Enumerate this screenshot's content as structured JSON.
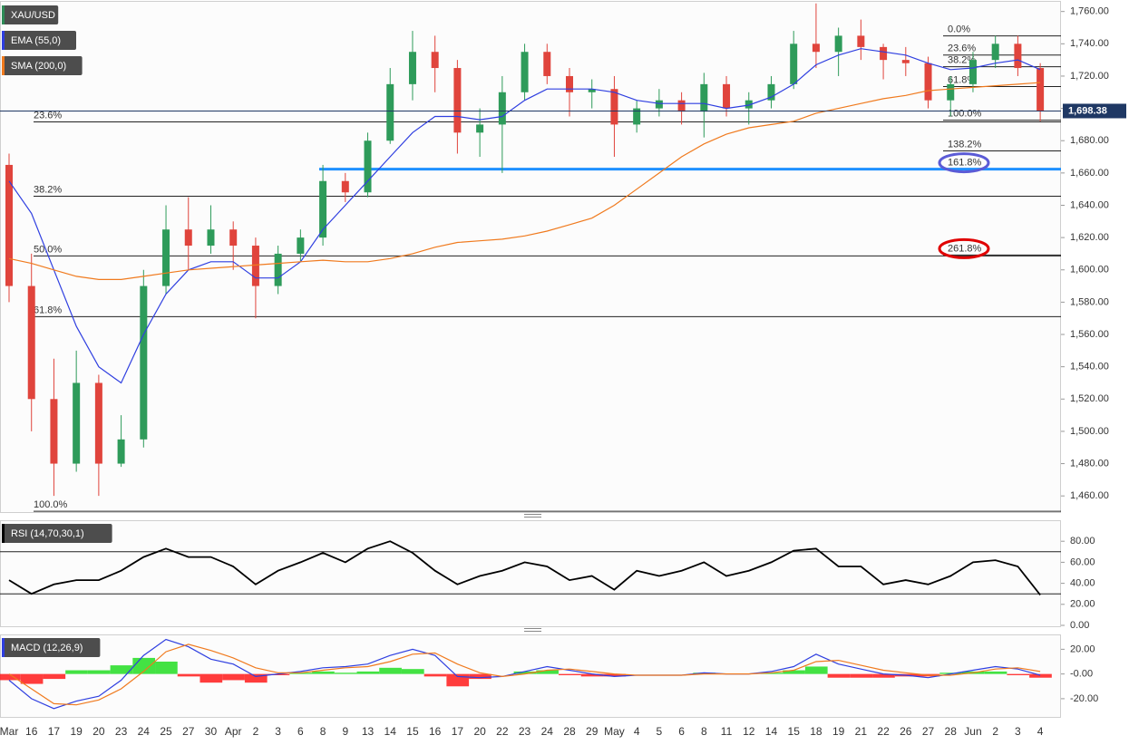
{
  "chart_data": [
    {
      "type": "candlestick",
      "ylim": [
        1450,
        1766
      ],
      "yticks": [
        {
          "value": 1460,
          "label": "1,460.00"
        },
        {
          "value": 1480,
          "label": "1,480.00"
        },
        {
          "value": 1500,
          "label": "1,500.00"
        },
        {
          "value": 1520,
          "label": "1,520.00"
        },
        {
          "value": 1540,
          "label": "1,540.00"
        },
        {
          "value": 1560,
          "label": "1,560.00"
        },
        {
          "value": 1580,
          "label": "1,580.00"
        },
        {
          "value": 1600,
          "label": "1,600.00"
        },
        {
          "value": 1620,
          "label": "1,620.00"
        },
        {
          "value": 1640,
          "label": "1,640.00"
        },
        {
          "value": 1660,
          "label": "1,660.00"
        },
        {
          "value": 1680,
          "label": "1,680.00"
        },
        {
          "value": 1700,
          "label": "1,700.00"
        },
        {
          "value": 1720,
          "label": "1,720.00"
        },
        {
          "value": 1740,
          "label": "1,740.00"
        },
        {
          "value": 1760,
          "label": "1,760.00"
        }
      ],
      "up_color": "#2e9b5a",
      "down_color": "#e0443c",
      "last_price": {
        "value": 1698.38,
        "label": "1,698.38"
      },
      "last_price_color": "#1f3864",
      "series": [
        {
          "name": "XAU/USD",
          "color": "#2e8b57",
          "open": [
            1665,
            1590,
            1520,
            1480,
            1530,
            1480,
            1495,
            1590,
            1625,
            1615,
            1625,
            1615,
            1590,
            1610,
            1620,
            1655,
            1648,
            1680,
            1715,
            1735,
            1725,
            1685,
            1690,
            1710,
            1735,
            1720,
            1710,
            1712,
            1690,
            1700,
            1705,
            1698,
            1715,
            1700,
            1705,
            1715,
            1740,
            1735,
            1745,
            1738,
            1730,
            1728,
            1705,
            1715,
            1730,
            1740,
            1725
          ],
          "high": [
            1672,
            1610,
            1545,
            1550,
            1535,
            1510,
            1600,
            1640,
            1645,
            1640,
            1630,
            1620,
            1615,
            1625,
            1665,
            1660,
            1685,
            1725,
            1748,
            1745,
            1730,
            1700,
            1720,
            1740,
            1740,
            1725,
            1718,
            1720,
            1705,
            1712,
            1710,
            1722,
            1720,
            1710,
            1720,
            1748,
            1765,
            1750,
            1755,
            1740,
            1738,
            1732,
            1720,
            1735,
            1745,
            1745,
            1728
          ],
          "low": [
            1580,
            1500,
            1460,
            1475,
            1460,
            1478,
            1490,
            1585,
            1600,
            1610,
            1600,
            1570,
            1585,
            1605,
            1615,
            1642,
            1645,
            1678,
            1705,
            1710,
            1672,
            1670,
            1660,
            1705,
            1715,
            1695,
            1700,
            1670,
            1685,
            1695,
            1690,
            1682,
            1695,
            1690,
            1700,
            1712,
            1725,
            1720,
            1730,
            1718,
            1720,
            1700,
            1695,
            1710,
            1725,
            1720,
            1692
          ],
          "close": [
            1590,
            1520,
            1480,
            1530,
            1480,
            1495,
            1590,
            1625,
            1615,
            1625,
            1615,
            1590,
            1610,
            1620,
            1655,
            1648,
            1680,
            1715,
            1735,
            1725,
            1685,
            1690,
            1710,
            1735,
            1720,
            1710,
            1712,
            1690,
            1700,
            1705,
            1698,
            1715,
            1700,
            1705,
            1715,
            1740,
            1735,
            1745,
            1738,
            1730,
            1728,
            1705,
            1715,
            1730,
            1740,
            1725,
            1698.38
          ]
        },
        {
          "name": "EMA (55,0)",
          "color": "#2f3fe0",
          "values": [
            1655,
            1635,
            1600,
            1565,
            1540,
            1530,
            1560,
            1585,
            1600,
            1605,
            1605,
            1595,
            1595,
            1605,
            1625,
            1640,
            1655,
            1670,
            1685,
            1695,
            1695,
            1693,
            1695,
            1705,
            1712,
            1712,
            1712,
            1710,
            1705,
            1703,
            1703,
            1703,
            1700,
            1702,
            1707,
            1715,
            1727,
            1733,
            1737,
            1735,
            1733,
            1728,
            1724,
            1725,
            1728,
            1730,
            1724
          ]
        },
        {
          "name": "SMA (200,0)",
          "color": "#f07a1e",
          "values": [
            1607,
            1604,
            1600,
            1596,
            1594,
            1594,
            1596,
            1598,
            1600,
            1601,
            1602,
            1603,
            1604,
            1605,
            1606,
            1605,
            1605,
            1607,
            1610,
            1614,
            1617,
            1618,
            1619,
            1621,
            1624,
            1628,
            1632,
            1640,
            1650,
            1660,
            1670,
            1678,
            1684,
            1688,
            1690,
            1692,
            1697,
            1700,
            1703,
            1706,
            1708,
            1711,
            1712,
            1713,
            1714,
            1715,
            1716
          ]
        }
      ],
      "fib_left": [
        {
          "label": "23.6%",
          "value": 1691.6
        },
        {
          "label": "38.2%",
          "value": 1645.6
        },
        {
          "label": "50.0%",
          "value": 1608.6
        },
        {
          "label": "61.8%",
          "value": 1571
        },
        {
          "label": "100.0%",
          "value": 1450.5
        }
      ],
      "fib_right": [
        {
          "label": "0.0%",
          "value": 1744.9
        },
        {
          "label": "23.6%",
          "value": 1733
        },
        {
          "label": "38.2%",
          "value": 1725.8
        },
        {
          "label": "61.8%",
          "value": 1713.5
        },
        {
          "label": "100.0%",
          "value": 1692.7
        },
        {
          "label": "138.2%",
          "value": 1673.7
        },
        {
          "label": "161.8%",
          "value": 1662.4,
          "color": "#1e90ff",
          "highlight": "#5b5bd6"
        },
        {
          "label": "261.8%",
          "value": 1609.2,
          "highlight": "#e00000"
        }
      ]
    },
    {
      "type": "line",
      "ylim": [
        0,
        100
      ],
      "yticks": [
        {
          "value": 0,
          "label": "0.00"
        },
        {
          "value": 20,
          "label": "20.00"
        },
        {
          "value": 40,
          "label": "40.00"
        },
        {
          "value": 60,
          "label": "60.00"
        },
        {
          "value": 80,
          "label": "80.00"
        }
      ],
      "levels": [
        70,
        30
      ],
      "series": [
        {
          "name": "RSI (14,70,30,1)",
          "color": "#000000",
          "values": [
            43,
            30,
            39,
            43,
            43,
            52,
            65,
            73,
            65,
            65,
            56,
            39,
            52,
            60,
            69,
            60,
            73,
            80,
            69,
            52,
            39,
            47,
            52,
            60,
            56,
            43,
            47,
            34,
            52,
            47,
            52,
            60,
            47,
            52,
            60,
            71,
            73,
            56,
            56,
            39,
            43,
            39,
            47,
            60,
            62,
            56,
            29
          ]
        }
      ]
    },
    {
      "type": "macd",
      "ylim": [
        -34,
        32
      ],
      "yticks": [
        {
          "value": 20,
          "label": "20.00"
        },
        {
          "value": 0,
          "label": "-0.00"
        },
        {
          "value": -20,
          "label": "-20.00"
        }
      ],
      "categories": [
        "Mar",
        "16",
        "17",
        "19",
        "20",
        "23",
        "24",
        "25",
        "27",
        "30",
        "Apr",
        "2",
        "3",
        "6",
        "8",
        "9",
        "13",
        "14",
        "15",
        "16",
        "17",
        "20",
        "22",
        "23",
        "24",
        "28",
        "29",
        "May",
        "4",
        "5",
        "6",
        "8",
        "11",
        "12",
        "14",
        "15",
        "18",
        "19",
        "21",
        "22",
        "26",
        "27",
        "28",
        "Jun",
        "2",
        "3",
        "4"
      ],
      "positive_color": "#22dd22",
      "negative_color": "#ff1a1a",
      "histogram": [
        -5,
        -8,
        -4,
        3,
        3,
        7,
        13,
        10,
        -2,
        -7,
        -5,
        -7,
        -1,
        1,
        2,
        1,
        2,
        5,
        4,
        -2,
        -10,
        -4,
        0,
        2,
        3,
        -1,
        -2,
        -2,
        0,
        0,
        0,
        1,
        0,
        0,
        1,
        3,
        6,
        -3,
        -3,
        -3,
        -2,
        -2,
        1,
        2,
        2,
        -1,
        -3
      ],
      "series": [
        {
          "name": "MACD (12,26,9)",
          "color": "#2f3fe0",
          "values": [
            -5,
            -20,
            -28,
            -22,
            -18,
            -5,
            15,
            28,
            22,
            12,
            8,
            -2,
            0,
            2,
            5,
            6,
            8,
            15,
            20,
            15,
            -2,
            -3,
            -2,
            2,
            6,
            3,
            0,
            -2,
            -1,
            -1,
            -1,
            1,
            0,
            0,
            2,
            6,
            16,
            8,
            4,
            0,
            -1,
            -3,
            0,
            3,
            6,
            4,
            -1
          ]
        },
        {
          "color": "#f07a1e",
          "values": [
            0,
            -12,
            -24,
            -25,
            -21,
            -12,
            2,
            18,
            24,
            19,
            13,
            5,
            1,
            1,
            3,
            5,
            6,
            10,
            16,
            17,
            8,
            1,
            -2,
            0,
            3,
            4,
            2,
            0,
            -1,
            -1,
            -1,
            0,
            0,
            0,
            1,
            3,
            10,
            11,
            7,
            3,
            1,
            -1,
            -1,
            1,
            4,
            5,
            2
          ]
        }
      ]
    }
  ]
}
